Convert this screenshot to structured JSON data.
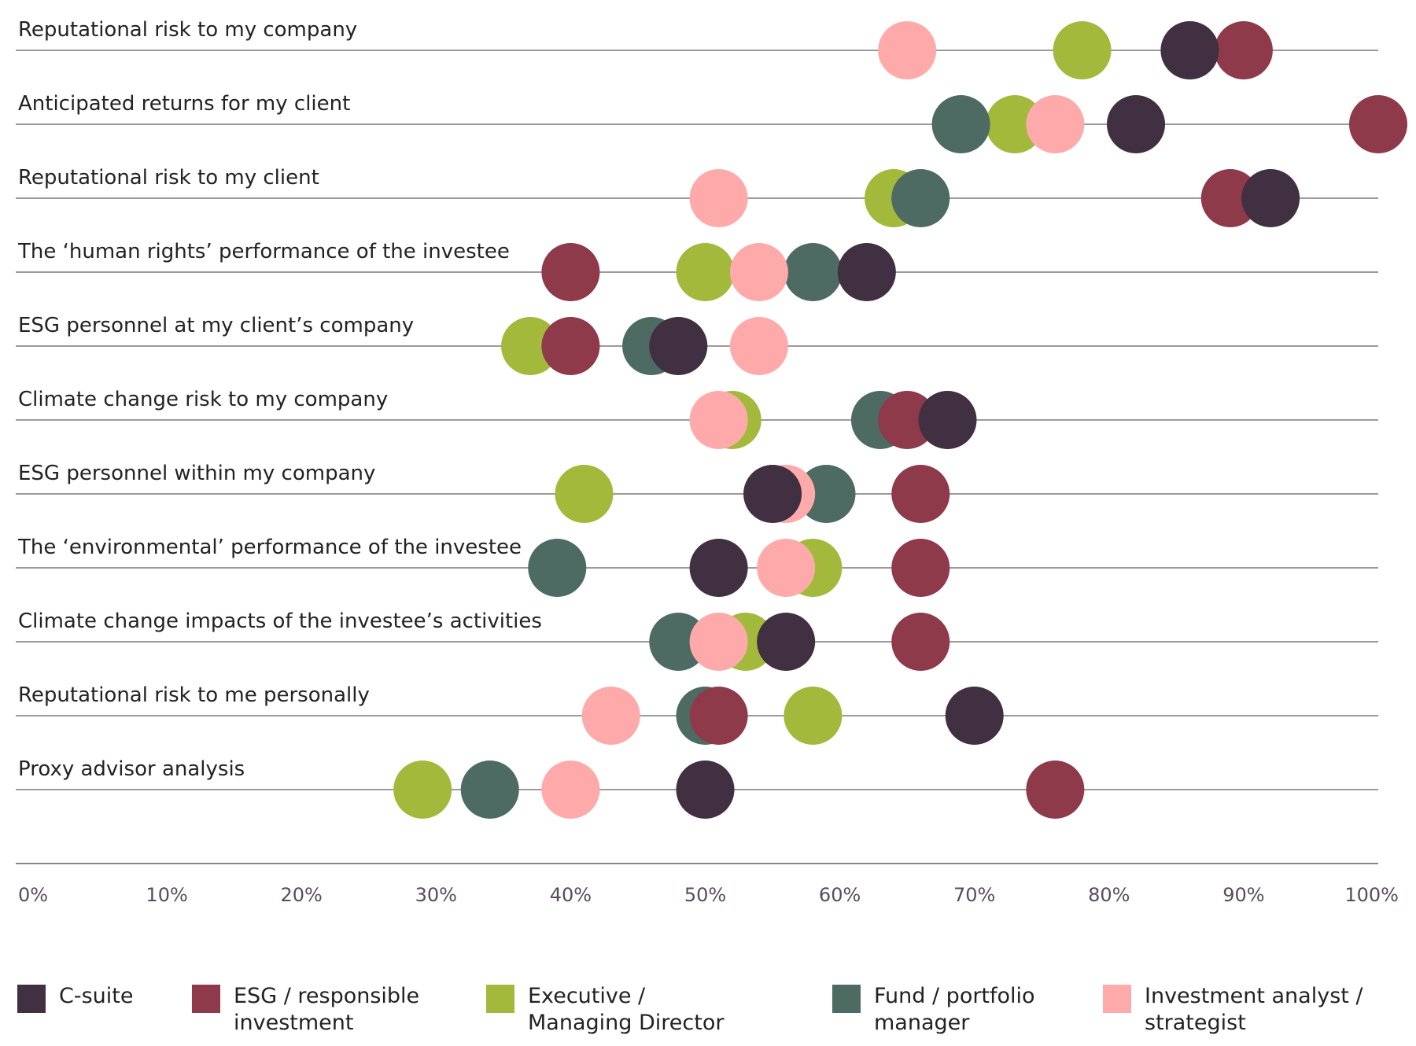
{
  "chart_data": {
    "type": "dot",
    "orientation": "horizontal",
    "title": "",
    "xlabel": "",
    "ylabel": "",
    "xlim": [
      0,
      100
    ],
    "x_ticks": [
      "0%",
      "10%",
      "20%",
      "30%",
      "40%",
      "50%",
      "60%",
      "70%",
      "80%",
      "90%",
      "100%"
    ],
    "categories": [
      "Reputational risk to my company",
      "Anticipated returns for my client",
      "Reputational risk to my client",
      "The ‘human rights’ performance of the investee",
      "ESG personnel at my client’s company",
      "Climate change risk to my company",
      "ESG personnel within my company",
      "The ‘environmental’ performance of the investee",
      "Climate change impacts of the investee’s activities",
      "Reputational risk to me personally",
      "Proxy advisor analysis"
    ],
    "series": [
      {
        "name": "Executive / Managing Director",
        "color": "#a3b93c",
        "values": [
          78,
          73,
          64,
          50,
          37,
          52,
          41,
          58,
          53,
          58,
          29
        ]
      },
      {
        "name": "Fund / portfolio manager",
        "color": "#4d6b62",
        "values": [
          86,
          69,
          66,
          58,
          46,
          63,
          59,
          39,
          48,
          50,
          34
        ]
      },
      {
        "name": "Investment analyst / strategist",
        "color": "#ffaaaa",
        "values": [
          65,
          76,
          51,
          54,
          54,
          51,
          56,
          56,
          51,
          43,
          40
        ]
      },
      {
        "name": "ESG / responsible investment",
        "color": "#8e3a4a",
        "values": [
          90,
          100,
          89,
          40,
          40,
          65,
          66,
          66,
          66,
          51,
          76
        ]
      },
      {
        "name": "C-suite",
        "color": "#412f42",
        "values": [
          86,
          82,
          92,
          62,
          48,
          68,
          55,
          51,
          56,
          70,
          50
        ]
      }
    ],
    "legend": {
      "placement": "bottom",
      "items": [
        {
          "label": "C-suite",
          "color": "#412f42"
        },
        {
          "label": "ESG / responsible investment",
          "color": "#8e3a4a"
        },
        {
          "label": "Executive / Managing Director",
          "color": "#a3b93c"
        },
        {
          "label": "Fund / portfolio manager",
          "color": "#4d6b62"
        },
        {
          "label": "Investment analyst / strategist",
          "color": "#ffaaaa"
        }
      ]
    },
    "grid": false
  }
}
